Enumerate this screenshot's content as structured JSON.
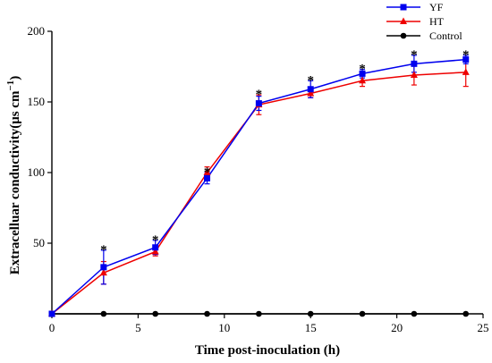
{
  "chart_data": {
    "type": "line",
    "xlabel": "Time post-inoculation (h)",
    "ylabel": "Extracelluar conductivity(μs cm",
    "ylabel_sup": "−1",
    "ylabel_close": ")",
    "xlim": [
      0,
      25
    ],
    "ylim": [
      0,
      200
    ],
    "xticks": [
      0,
      5,
      10,
      15,
      20,
      25
    ],
    "yticks": [
      50,
      100,
      150,
      200
    ],
    "legend_position": "top-right",
    "x": [
      0,
      3,
      6,
      9,
      12,
      15,
      18,
      21,
      24
    ],
    "series": [
      {
        "name": "YF",
        "color": "#0000ee",
        "marker": "square",
        "values": [
          0,
          33,
          47,
          96,
          149,
          159,
          170,
          177,
          180
        ],
        "errors": [
          0,
          12,
          5,
          4,
          5,
          6,
          3,
          6,
          3
        ]
      },
      {
        "name": "HT",
        "color": "#ee0000",
        "marker": "triangle",
        "values": [
          0,
          29,
          44,
          100,
          148,
          156,
          165,
          169,
          171
        ],
        "errors": [
          0,
          8,
          3,
          4,
          7,
          3,
          4,
          7,
          10
        ]
      },
      {
        "name": "Control",
        "color": "#000000",
        "marker": "circle",
        "values": [
          0,
          0,
          0,
          0,
          0,
          0,
          0,
          0,
          0
        ],
        "errors": [
          0,
          0,
          0,
          0,
          0,
          0,
          0,
          0,
          0
        ]
      }
    ],
    "annotations": [
      {
        "x": 3,
        "y": 45,
        "text": "*"
      },
      {
        "x": 6,
        "y": 52,
        "text": "*"
      },
      {
        "x": 9,
        "y": 100,
        "text": "*"
      },
      {
        "x": 12,
        "y": 155,
        "text": "*"
      },
      {
        "x": 15,
        "y": 165,
        "text": "*"
      },
      {
        "x": 18,
        "y": 173,
        "text": "*"
      },
      {
        "x": 21,
        "y": 183,
        "text": "*"
      },
      {
        "x": 24,
        "y": 183,
        "text": "*"
      }
    ]
  }
}
